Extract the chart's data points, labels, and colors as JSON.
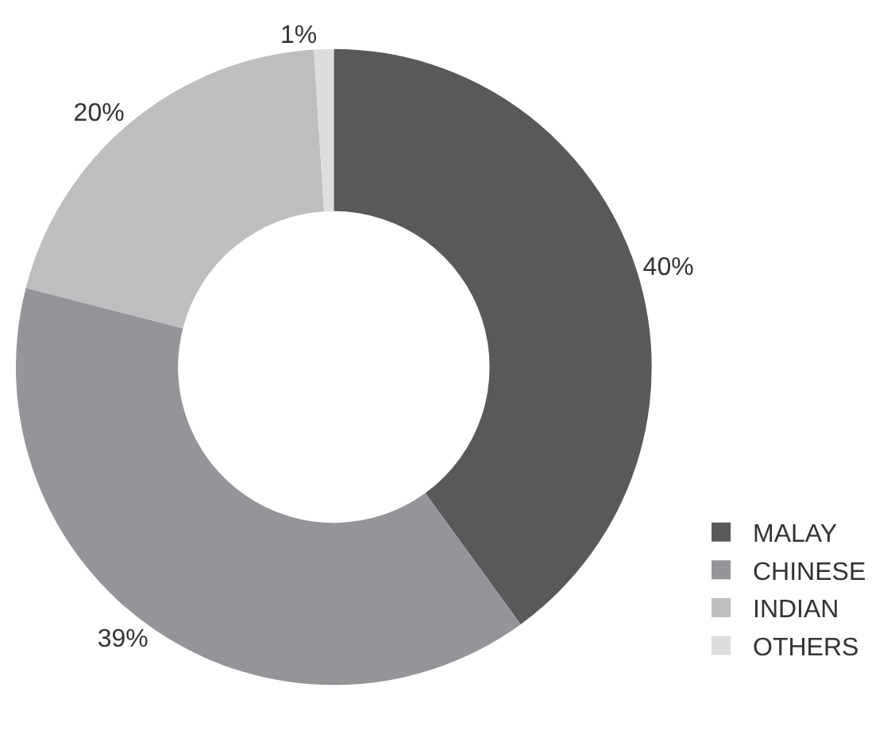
{
  "chart_data": {
    "type": "donut",
    "categories": [
      "MALAY",
      "CHINESE",
      "INDIAN",
      "OTHERS"
    ],
    "values": [
      40,
      39,
      20,
      1
    ],
    "colors": [
      "#58595b",
      "#939598",
      "#bcbec0",
      "#dcdddf"
    ],
    "value_labels": [
      "40%",
      "39%",
      "20%",
      "1%"
    ],
    "legend": "bottom right"
  }
}
